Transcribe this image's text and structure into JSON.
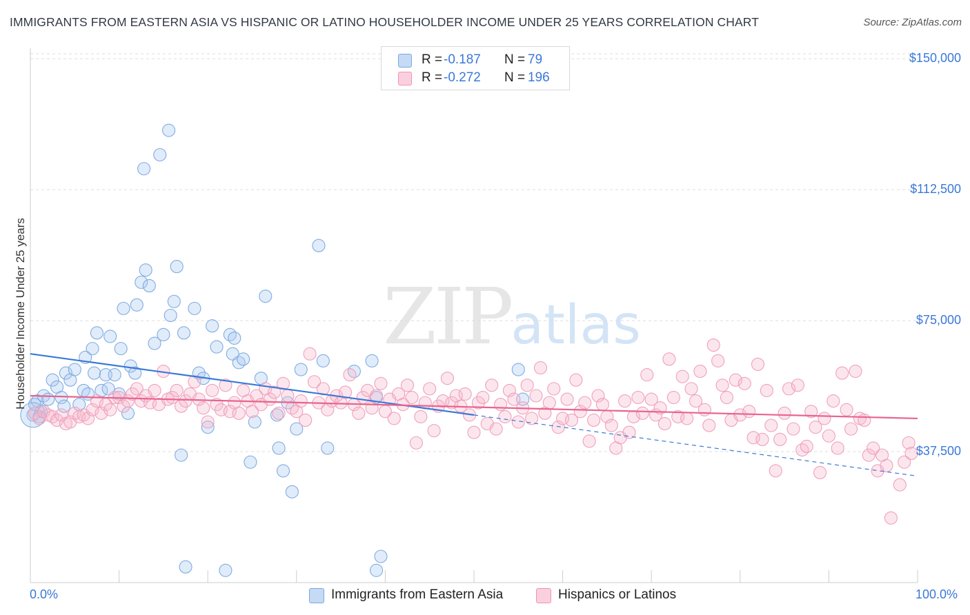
{
  "title": "IMMIGRANTS FROM EASTERN ASIA VS HISPANIC OR LATINO HOUSEHOLDER INCOME UNDER 25 YEARS CORRELATION CHART",
  "source": "Source: ZipAtlas.com",
  "watermark": {
    "zip": "ZIP",
    "atlas": "atlas"
  },
  "legend": {
    "rows": [
      {
        "r_label": "R =",
        "r_value": "-0.187",
        "n_label": "N =",
        "n_value": "79",
        "color": "#a8c8f0"
      },
      {
        "r_label": "R =",
        "r_value": "-0.272",
        "n_label": "N =",
        "n_value": "196",
        "color": "#f7b6cb"
      }
    ]
  },
  "bottom_legend": [
    {
      "label": "Immigrants from Eastern Asia",
      "color": "#a8c8f0"
    },
    {
      "label": "Hispanics or Latinos",
      "color": "#f7b6cb"
    }
  ],
  "colors": {
    "blue": "#3a78d8",
    "blue_fill": "#a8c8f0",
    "pink": "#e8648f",
    "pink_fill": "#f7b6cb",
    "grid": "#dddddd"
  },
  "chart_data": {
    "type": "scatter",
    "title": "IMMIGRANTS FROM EASTERN ASIA VS HISPANIC OR LATINO HOUSEHOLDER INCOME UNDER 25 YEARS CORRELATION CHART",
    "xlabel": "",
    "ylabel": "Householder Income Under 25 years",
    "x_tick_labels": [
      "0.0%",
      "100.0%"
    ],
    "y_tick_labels": [
      "$37,500",
      "$75,000",
      "$112,500",
      "$150,000"
    ],
    "y_ticks": [
      37500,
      75000,
      112500,
      150000
    ],
    "xlim": [
      0,
      100
    ],
    "ylim": [
      0,
      153000
    ],
    "grid": true,
    "legend_position": "top-center",
    "series": [
      {
        "name": "Immigrants from Eastern Asia",
        "r": -0.187,
        "n": 79,
        "trend": {
          "x0": 0,
          "y0": 65500,
          "x1": 100,
          "y1": 30500,
          "solid_until": 50
        },
        "points": [
          [
            0.3,
            48000
          ],
          [
            0.8,
            52000
          ],
          [
            1.2,
            49000
          ],
          [
            1.5,
            53500
          ],
          [
            2,
            52500
          ],
          [
            2.5,
            58000
          ],
          [
            3,
            56000
          ],
          [
            3.5,
            53000
          ],
          [
            4,
            60000
          ],
          [
            4.5,
            58000
          ],
          [
            5,
            61000
          ],
          [
            5.5,
            51000
          ],
          [
            6,
            55000
          ],
          [
            6.2,
            64500
          ],
          [
            6.5,
            54000
          ],
          [
            7,
            67000
          ],
          [
            7.2,
            60000
          ],
          [
            7.5,
            71500
          ],
          [
            8,
            55000
          ],
          [
            8.5,
            59500
          ],
          [
            8.8,
            55500
          ],
          [
            9,
            70500
          ],
          [
            9.5,
            59500
          ],
          [
            10,
            54000
          ],
          [
            10.2,
            67000
          ],
          [
            10.5,
            78500
          ],
          [
            11,
            48500
          ],
          [
            11.3,
            62000
          ],
          [
            11.8,
            60000
          ],
          [
            12,
            79500
          ],
          [
            12.5,
            86000
          ],
          [
            12.8,
            118500
          ],
          [
            13,
            89500
          ],
          [
            13.4,
            85000
          ],
          [
            14,
            68500
          ],
          [
            14.6,
            122500
          ],
          [
            15,
            71000
          ],
          [
            15.6,
            129500
          ],
          [
            15.8,
            76500
          ],
          [
            16.2,
            80500
          ],
          [
            16.5,
            90500
          ],
          [
            17,
            36500
          ],
          [
            17.3,
            71500
          ],
          [
            18.5,
            78500
          ],
          [
            19,
            60000
          ],
          [
            19.5,
            58500
          ],
          [
            20,
            44500
          ],
          [
            20.5,
            73500
          ],
          [
            21,
            67500
          ],
          [
            22.5,
            71000
          ],
          [
            22.8,
            65500
          ],
          [
            23,
            70000
          ],
          [
            23.5,
            63000
          ],
          [
            24,
            64000
          ],
          [
            24.8,
            34500
          ],
          [
            25.3,
            46000
          ],
          [
            26,
            58500
          ],
          [
            26.5,
            82000
          ],
          [
            27.8,
            48000
          ],
          [
            28,
            38500
          ],
          [
            28.5,
            32000
          ],
          [
            29,
            51500
          ],
          [
            29.5,
            26000
          ],
          [
            30,
            44000
          ],
          [
            30.5,
            61000
          ],
          [
            32.5,
            96500
          ],
          [
            33,
            63500
          ],
          [
            33.5,
            38500
          ],
          [
            36.5,
            60500
          ],
          [
            38.5,
            63500
          ],
          [
            39,
            53000
          ],
          [
            55,
            61000
          ],
          [
            55.5,
            52500
          ],
          [
            17.5,
            4500
          ],
          [
            22,
            3500
          ],
          [
            39,
            3500
          ],
          [
            39.5,
            7500
          ],
          [
            0.5,
            51000
          ],
          [
            1,
            47500
          ],
          [
            3.8,
            50500
          ]
        ]
      },
      {
        "name": "Hispanics or Latinos",
        "r": -0.272,
        "n": 196,
        "trend": {
          "x0": 0,
          "y0": 53500,
          "x1": 100,
          "y1": 47000
        },
        "points": [
          [
            0.5,
            48500
          ],
          [
            1,
            47000
          ],
          [
            1.5,
            49000
          ],
          [
            2,
            48000
          ],
          [
            2.5,
            47500
          ],
          [
            3,
            46500
          ],
          [
            3.5,
            48000
          ],
          [
            4,
            45500
          ],
          [
            4.5,
            46000
          ],
          [
            5,
            48500
          ],
          [
            5.5,
            47500
          ],
          [
            6,
            48000
          ],
          [
            6.5,
            47000
          ],
          [
            7,
            49500
          ],
          [
            7.5,
            52000
          ],
          [
            8,
            48500
          ],
          [
            8.5,
            51000
          ],
          [
            9,
            49500
          ],
          [
            9.5,
            53000
          ],
          [
            10,
            53000
          ],
          [
            10.5,
            50500
          ],
          [
            11,
            52000
          ],
          [
            11.5,
            54000
          ],
          [
            12,
            55500
          ],
          [
            12.5,
            52000
          ],
          [
            13,
            53500
          ],
          [
            13.5,
            51500
          ],
          [
            14,
            55000
          ],
          [
            14.5,
            51000
          ],
          [
            15,
            60500
          ],
          [
            15.5,
            52500
          ],
          [
            16,
            53000
          ],
          [
            16.5,
            55000
          ],
          [
            17,
            50500
          ],
          [
            17.5,
            52000
          ],
          [
            18,
            54000
          ],
          [
            18.5,
            57500
          ],
          [
            19,
            52500
          ],
          [
            19.5,
            50000
          ],
          [
            20,
            46000
          ],
          [
            20.5,
            55000
          ],
          [
            21,
            51000
          ],
          [
            21.5,
            49500
          ],
          [
            22,
            56500
          ],
          [
            22.5,
            49000
          ],
          [
            23,
            51500
          ],
          [
            23.5,
            48500
          ],
          [
            24,
            55000
          ],
          [
            24.5,
            52000
          ],
          [
            25,
            49000
          ],
          [
            25.5,
            53500
          ],
          [
            26,
            51000
          ],
          [
            26.5,
            55500
          ],
          [
            27,
            52500
          ],
          [
            27.5,
            54500
          ],
          [
            28,
            48500
          ],
          [
            28.5,
            57000
          ],
          [
            29,
            53500
          ],
          [
            29.5,
            50000
          ],
          [
            30,
            49000
          ],
          [
            30.5,
            52000
          ],
          [
            31,
            46500
          ],
          [
            31.5,
            65500
          ],
          [
            32,
            57500
          ],
          [
            32.5,
            51500
          ],
          [
            33,
            55500
          ],
          [
            33.5,
            49500
          ],
          [
            34,
            52000
          ],
          [
            34.5,
            53500
          ],
          [
            35,
            51500
          ],
          [
            35.5,
            54500
          ],
          [
            36,
            59500
          ],
          [
            36.5,
            51000
          ],
          [
            37,
            48500
          ],
          [
            37.5,
            53000
          ],
          [
            38,
            55000
          ],
          [
            38.5,
            50000
          ],
          [
            39,
            53500
          ],
          [
            39.5,
            57000
          ],
          [
            40,
            49000
          ],
          [
            40.5,
            52500
          ],
          [
            41,
            47000
          ],
          [
            41.5,
            54000
          ],
          [
            42,
            51000
          ],
          [
            42.5,
            56500
          ],
          [
            43,
            53000
          ],
          [
            43.5,
            40000
          ],
          [
            44,
            47500
          ],
          [
            44.5,
            51500
          ],
          [
            45,
            55500
          ],
          [
            45.5,
            43500
          ],
          [
            46,
            50500
          ],
          [
            46.5,
            52000
          ],
          [
            47,
            58500
          ],
          [
            47.5,
            51500
          ],
          [
            48,
            53500
          ],
          [
            48.5,
            50500
          ],
          [
            49,
            54000
          ],
          [
            49.5,
            48000
          ],
          [
            50,
            43000
          ],
          [
            50.5,
            51500
          ],
          [
            51,
            53000
          ],
          [
            51.5,
            45500
          ],
          [
            52,
            56500
          ],
          [
            52.5,
            44000
          ],
          [
            53,
            51000
          ],
          [
            53.5,
            47500
          ],
          [
            54,
            55000
          ],
          [
            54.5,
            52500
          ],
          [
            55,
            46000
          ],
          [
            55.5,
            50000
          ],
          [
            56,
            56500
          ],
          [
            56.5,
            47000
          ],
          [
            57,
            53500
          ],
          [
            57.5,
            61500
          ],
          [
            58,
            48500
          ],
          [
            58.5,
            51500
          ],
          [
            59,
            55500
          ],
          [
            59.5,
            44500
          ],
          [
            60,
            47000
          ],
          [
            60.5,
            52500
          ],
          [
            61,
            46500
          ],
          [
            61.5,
            58000
          ],
          [
            62,
            49000
          ],
          [
            62.5,
            51500
          ],
          [
            63,
            40500
          ],
          [
            63.5,
            46500
          ],
          [
            64,
            53500
          ],
          [
            64.5,
            51000
          ],
          [
            65,
            47500
          ],
          [
            65.5,
            45000
          ],
          [
            66,
            38500
          ],
          [
            66.5,
            41500
          ],
          [
            67,
            52000
          ],
          [
            67.5,
            43000
          ],
          [
            68,
            47500
          ],
          [
            68.5,
            53000
          ],
          [
            69,
            48500
          ],
          [
            69.5,
            59500
          ],
          [
            70,
            52500
          ],
          [
            70.5,
            48000
          ],
          [
            71,
            50000
          ],
          [
            71.5,
            45500
          ],
          [
            72,
            64000
          ],
          [
            72.5,
            53000
          ],
          [
            73,
            47500
          ],
          [
            73.5,
            59000
          ],
          [
            74,
            47000
          ],
          [
            74.5,
            55500
          ],
          [
            75,
            52000
          ],
          [
            75.5,
            60500
          ],
          [
            76,
            49500
          ],
          [
            76.5,
            45000
          ],
          [
            77,
            68000
          ],
          [
            77.5,
            63500
          ],
          [
            78,
            56500
          ],
          [
            78.5,
            53000
          ],
          [
            79,
            46500
          ],
          [
            79.5,
            58000
          ],
          [
            80,
            48000
          ],
          [
            80.5,
            57000
          ],
          [
            81,
            49000
          ],
          [
            81.5,
            41500
          ],
          [
            82,
            62500
          ],
          [
            82.5,
            41000
          ],
          [
            83,
            55000
          ],
          [
            83.5,
            45000
          ],
          [
            84,
            32000
          ],
          [
            84.5,
            41000
          ],
          [
            85,
            48500
          ],
          [
            85.5,
            55500
          ],
          [
            86,
            44000
          ],
          [
            86.5,
            56500
          ],
          [
            87,
            38000
          ],
          [
            87.5,
            39000
          ],
          [
            88,
            49000
          ],
          [
            88.5,
            44500
          ],
          [
            89,
            31500
          ],
          [
            89.5,
            47000
          ],
          [
            90,
            42000
          ],
          [
            90.5,
            52000
          ],
          [
            91,
            38500
          ],
          [
            91.5,
            60000
          ],
          [
            92,
            49500
          ],
          [
            92.5,
            44000
          ],
          [
            93,
            60500
          ],
          [
            93.5,
            47000
          ],
          [
            94,
            46500
          ],
          [
            94.5,
            36500
          ],
          [
            95,
            38500
          ],
          [
            95.5,
            32000
          ],
          [
            96,
            36500
          ],
          [
            96.5,
            33500
          ],
          [
            97,
            18500
          ],
          [
            98,
            28000
          ],
          [
            98.5,
            34500
          ],
          [
            99,
            40000
          ],
          [
            99.3,
            37000
          ]
        ]
      }
    ]
  }
}
